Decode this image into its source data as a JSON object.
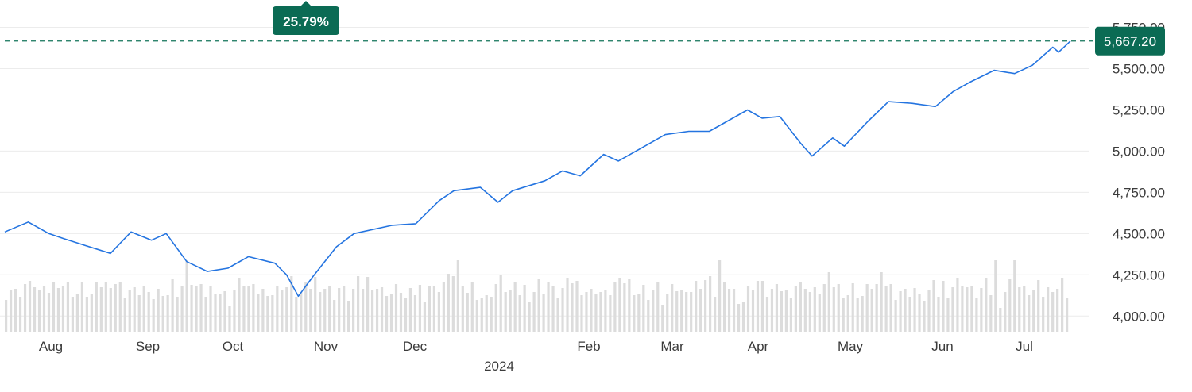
{
  "chart_data": {
    "type": "line",
    "title": "",
    "xlabel": "",
    "ylabel": "",
    "x_axis": {
      "ticks": [
        "Aug",
        "Sep",
        "Oct",
        "Nov",
        "Dec",
        "Feb",
        "Mar",
        "Apr",
        "May",
        "Jun",
        "Jul"
      ],
      "year_label": "2024"
    },
    "y_axis": {
      "ticks": [
        "4,000.00",
        "4,250.00",
        "4,500.00",
        "4,750.00",
        "5,000.00",
        "5,250.00",
        "5,500.00",
        "5,750.00"
      ],
      "ylim": [
        3905,
        5820
      ],
      "side": "right"
    },
    "grid": true,
    "current_value_label": "5,667.20",
    "current_value": 5667.2,
    "change_label": "25.79%",
    "colors": {
      "line": "#2474e0",
      "reference": "#127459",
      "badge": "#0b6b54",
      "volume": "#dcdcdc"
    },
    "series": [
      {
        "dates": [
          "2023-07-19",
          "2023-07-27",
          "2023-08-03",
          "2023-08-08",
          "2023-08-15",
          "2023-08-24",
          "2023-08-31",
          "2023-09-07",
          "2023-09-12",
          "2023-09-19",
          "2023-09-26",
          "2023-10-03",
          "2023-10-10",
          "2023-10-19",
          "2023-10-23",
          "2023-10-27",
          "2023-11-01",
          "2023-11-09",
          "2023-11-15",
          "2023-11-28",
          "2023-12-06",
          "2023-12-14",
          "2023-12-19",
          "2023-12-28",
          "2024-01-03",
          "2024-01-08",
          "2024-01-19",
          "2024-01-25",
          "2024-01-31",
          "2024-02-08",
          "2024-02-13",
          "2024-02-21",
          "2024-02-29",
          "2024-03-08",
          "2024-03-15",
          "2024-03-28",
          "2024-04-02",
          "2024-04-08",
          "2024-04-15",
          "2024-04-19",
          "2024-04-26",
          "2024-04-30",
          "2024-05-08",
          "2024-05-15",
          "2024-05-23",
          "2024-05-31",
          "2024-06-06",
          "2024-06-12",
          "2024-06-20",
          "2024-06-27",
          "2024-07-03",
          "2024-07-10",
          "2024-07-12",
          "2024-07-16"
        ],
        "values": [
          4510,
          4570,
          4500,
          4470,
          4430,
          4380,
          4510,
          4460,
          4500,
          4330,
          4270,
          4290,
          4360,
          4320,
          4250,
          4120,
          4240,
          4420,
          4500,
          4550,
          4560,
          4700,
          4760,
          4780,
          4690,
          4760,
          4820,
          4880,
          4850,
          4980,
          4940,
          5020,
          5100,
          5120,
          5120,
          5250,
          5200,
          5210,
          5050,
          4970,
          5080,
          5030,
          5180,
          5300,
          5290,
          5270,
          5360,
          5420,
          5490,
          5470,
          5520,
          5630,
          5600,
          5667.2
        ]
      }
    ],
    "volume": [
      160,
      165,
      158,
      162,
      170,
      166,
      172,
      160,
      158,
      163,
      168,
      175,
      170,
      166,
      162,
      158,
      165,
      160,
      155,
      162,
      170,
      168,
      175,
      172,
      166,
      160,
      163,
      158,
      162,
      165,
      150,
      155,
      160,
      165,
      158,
      170,
      162,
      168,
      172,
      175,
      166,
      160,
      158,
      163,
      168,
      160,
      155,
      150,
      162,
      170,
      174,
      166,
      160,
      162
    ]
  }
}
